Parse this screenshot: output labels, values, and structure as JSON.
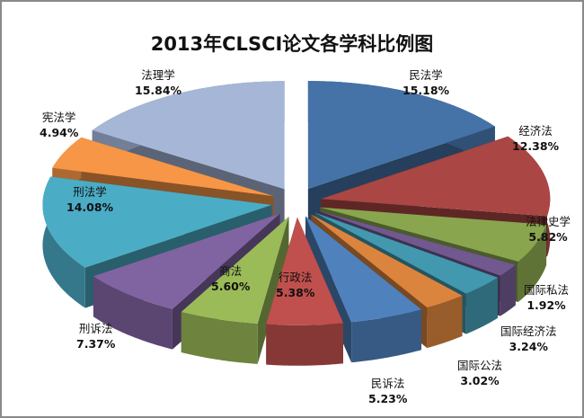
{
  "chart_data": {
    "type": "pie",
    "style": "3d-exploded",
    "title": "2013年CLSCI论文各学科比例图",
    "legend": "none (data labels on slices)",
    "categories": [
      "民法学",
      "经济法",
      "法律史学",
      "国际私法",
      "国际经济法",
      "国际公法",
      "民诉法",
      "行政法",
      "商法",
      "刑诉法",
      "刑法学",
      "宪法学",
      "法理学"
    ],
    "values": [
      15.18,
      12.38,
      5.82,
      1.92,
      3.24,
      3.02,
      5.23,
      5.38,
      5.6,
      7.37,
      14.08,
      4.94,
      15.84
    ],
    "unit": "%",
    "slices": [
      {
        "label": "民法学",
        "value": "15.18%",
        "color": "#4572a7"
      },
      {
        "label": "经济法",
        "value": "12.38%",
        "color": "#aa4643"
      },
      {
        "label": "法律史学",
        "value": "5.82%",
        "color": "#89a54e"
      },
      {
        "label": "国际私法",
        "value": "1.92%",
        "color": "#71588f"
      },
      {
        "label": "国际经济法",
        "value": "3.24%",
        "color": "#4198af"
      },
      {
        "label": "国际公法",
        "value": "3.02%",
        "color": "#db843d"
      },
      {
        "label": "民诉法",
        "value": "5.23%",
        "color": "#4f81bd"
      },
      {
        "label": "行政法",
        "value": "5.38%",
        "color": "#c0504d"
      },
      {
        "label": "商法",
        "value": "5.60%",
        "color": "#9bbb59"
      },
      {
        "label": "刑诉法",
        "value": "7.37%",
        "color": "#8064a2"
      },
      {
        "label": "刑法学",
        "value": "14.08%",
        "color": "#4bacc6"
      },
      {
        "label": "宪法学",
        "value": "4.94%",
        "color": "#f79646"
      },
      {
        "label": "法理学",
        "value": "15.84%",
        "color": "#a5b6d6"
      }
    ]
  }
}
